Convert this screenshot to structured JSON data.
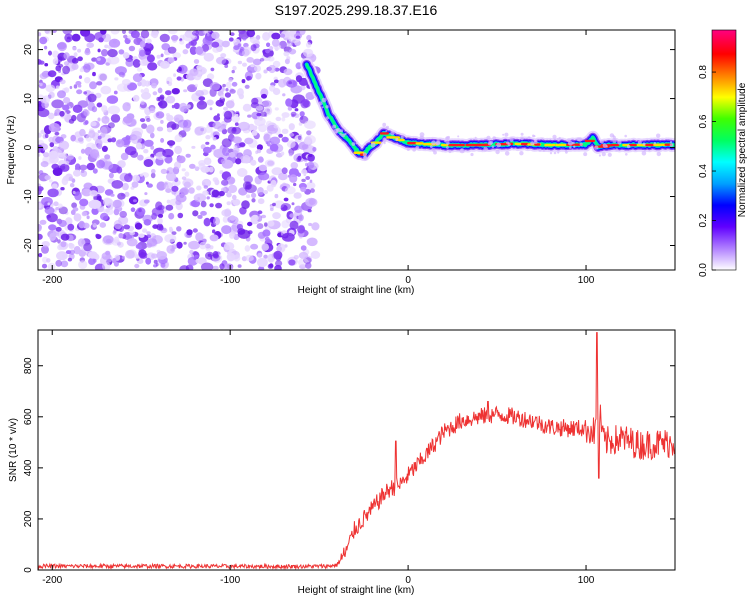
{
  "figure": {
    "title": "S197.2025.299.18.37.E16"
  },
  "chart_data": [
    {
      "type": "heatmap",
      "title": "S197.2025.299.18.37.E16",
      "xlabel": "Height of straight line (km)",
      "ylabel": "Frequency (Hz)",
      "xlim": [
        -208,
        150
      ],
      "ylim": [
        -25,
        24
      ],
      "xticks": [
        -200,
        -100,
        0,
        100
      ],
      "yticks": [
        -20,
        -10,
        0,
        10,
        20
      ],
      "noise_region_x": [
        -208,
        -52
      ],
      "ridge": {
        "x": [
          -57,
          -52,
          -45,
          -38,
          -32,
          -28,
          -25,
          -22,
          -18,
          -14,
          -8,
          0,
          20,
          40,
          60,
          80,
          100,
          104,
          107,
          112,
          130,
          150
        ],
        "freq": [
          17,
          13,
          7,
          3,
          1,
          -1,
          -1.5,
          0,
          1,
          3,
          2,
          1,
          0.5,
          0.5,
          0.8,
          0.5,
          0.6,
          2,
          0,
          0.5,
          0.5,
          0.6
        ]
      },
      "colorbar": {
        "label": "Normalized spectral amplitude",
        "range": [
          0,
          0.97
        ],
        "ticks": [
          "0.0",
          "0.2",
          "0.4",
          "0.6",
          "0.8"
        ],
        "colors": [
          "#ffffff",
          "#b080ff",
          "#6000ff",
          "#0000ff",
          "#00a0ff",
          "#00ffff",
          "#00ff60",
          "#40ff00",
          "#ffff00",
          "#ff8000",
          "#ff0000",
          "#ff0080"
        ]
      }
    },
    {
      "type": "line",
      "xlabel": "Height of straight line (km)",
      "ylabel": "SNR (10 * v/v)",
      "xlim": [
        -208,
        150
      ],
      "ylim": [
        0,
        940
      ],
      "xticks": [
        -200,
        -100,
        0,
        100
      ],
      "yticks": [
        0,
        200,
        400,
        600,
        800
      ],
      "series": [
        {
          "name": "SNR",
          "color": "#ee3333",
          "x": [
            -208,
            -180,
            -150,
            -120,
            -90,
            -60,
            -45,
            -40,
            -35,
            -30,
            -25,
            -20,
            -15,
            -10,
            -5,
            0,
            10,
            20,
            30,
            40,
            50,
            60,
            70,
            80,
            90,
            100,
            105,
            107,
            110,
            120,
            130,
            140,
            150
          ],
          "y": [
            15,
            15,
            15,
            15,
            14,
            14,
            15,
            20,
            70,
            160,
            200,
            240,
            285,
            320,
            330,
            370,
            450,
            540,
            585,
            600,
            610,
            600,
            585,
            560,
            555,
            555,
            540,
            640,
            500,
            515,
            490,
            495,
            500
          ],
          "spikes": [
            {
              "x": -7,
              "y": 505
            },
            {
              "x": 106,
              "y": 930
            },
            {
              "x": 107,
              "y": 360
            },
            {
              "x": 45,
              "y": 660
            }
          ]
        }
      ]
    }
  ]
}
